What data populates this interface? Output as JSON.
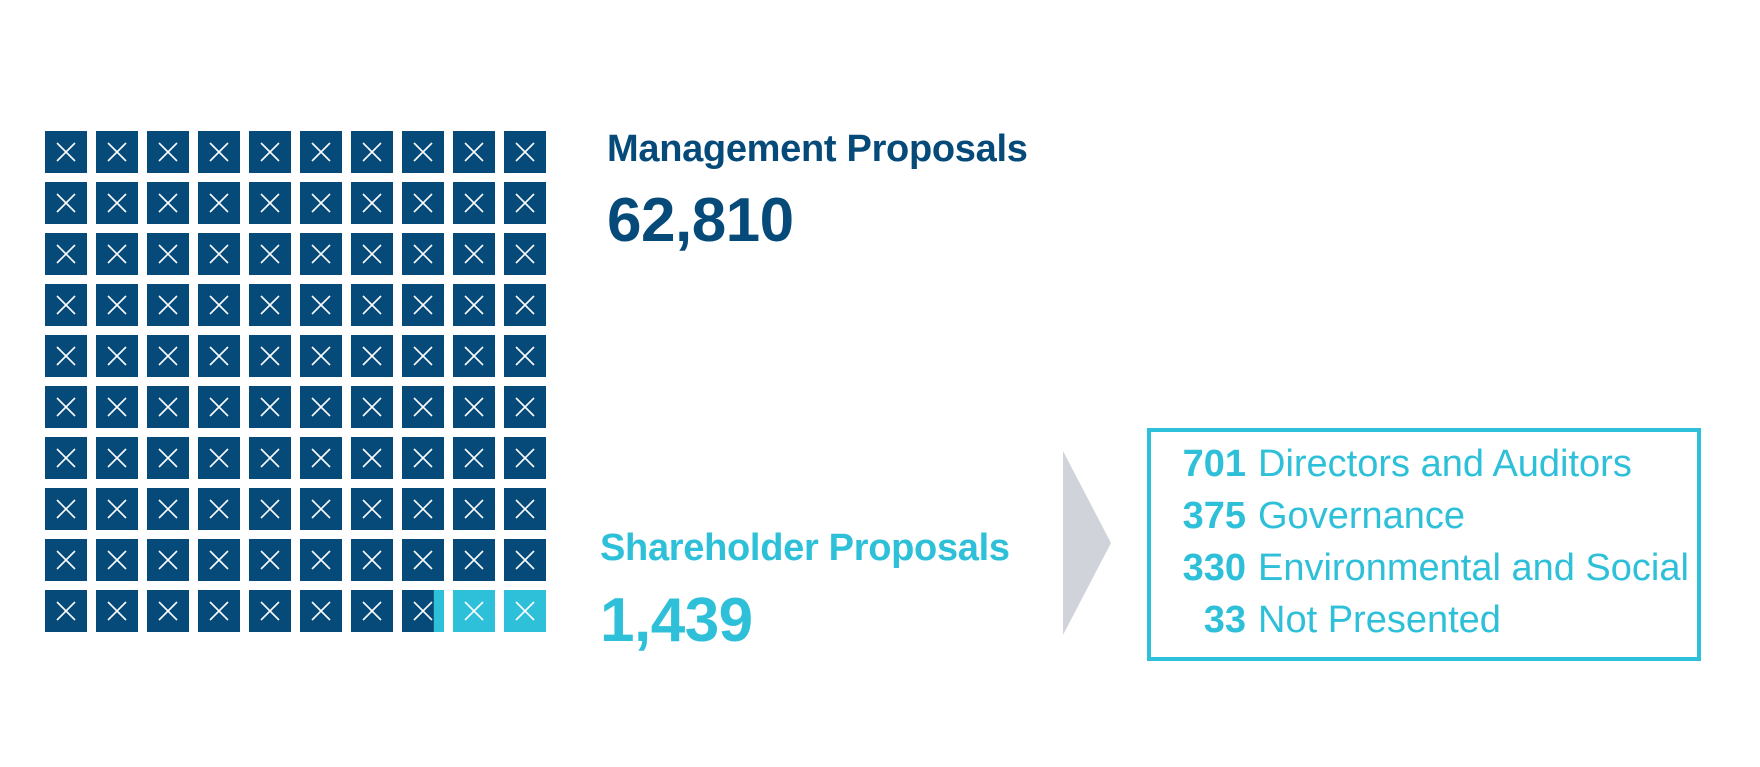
{
  "chart_data": {
    "type": "waffle",
    "grid": {
      "rows": 10,
      "cols": 10
    },
    "series": [
      {
        "name": "Management Proposals",
        "value_label": "62,810",
        "value": 62810,
        "color": "#064a7a"
      },
      {
        "name": "Shareholder Proposals",
        "value_label": "1,439",
        "value": 1439,
        "color": "#2ec0d9"
      }
    ],
    "breakdown": {
      "color": "#2ec0d9",
      "items": [
        {
          "value": "701",
          "label": "Directors and Auditors"
        },
        {
          "value": "375",
          "label": "Governance"
        },
        {
          "value": "330",
          "label": "Environmental and Social"
        },
        {
          "value": "33",
          "label": "Not Presented"
        }
      ]
    },
    "arrow_color": "#d0d3d9"
  }
}
